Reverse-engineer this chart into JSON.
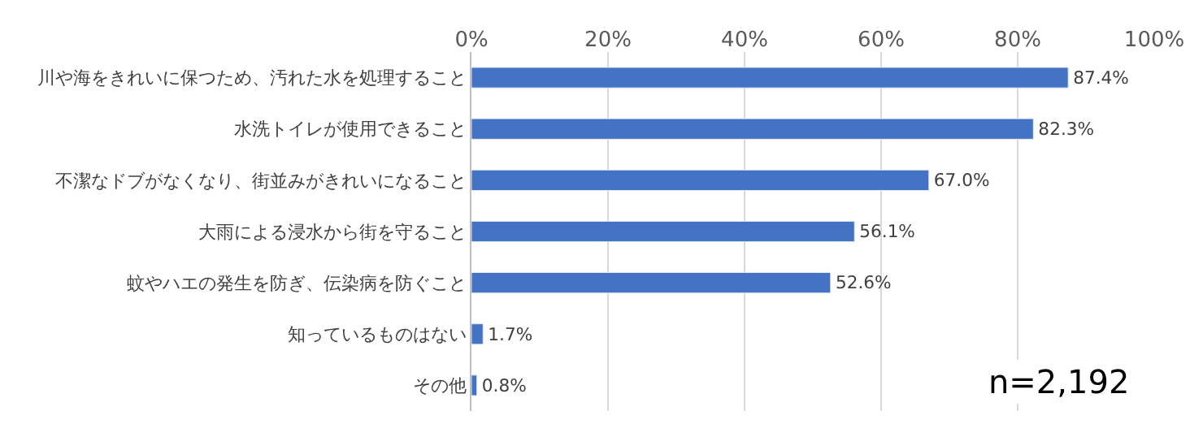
{
  "chart_data": {
    "type": "bar",
    "orientation": "horizontal",
    "categories": [
      "川や海をきれいに保つため、汚れた水を処理すること",
      "水洗トイレが使用できること",
      "不潔なドブがなくなり、街並みがきれいになること",
      "大雨による浸水から街を守ること",
      "蚊やハエの発生を防ぎ、伝染病を防ぐこと",
      "知っているものはない",
      "その他"
    ],
    "values": [
      87.4,
      82.3,
      67.0,
      56.1,
      52.6,
      1.7,
      0.8
    ],
    "value_labels": [
      "87.4%",
      "82.3%",
      "67.0%",
      "56.1%",
      "52.6%",
      "1.7%",
      "0.8%"
    ],
    "color": "#4472c4",
    "xlim": [
      0,
      100
    ],
    "xticks": [
      {
        "value": 0,
        "label": "0%"
      },
      {
        "value": 20,
        "label": "20%"
      },
      {
        "value": 40,
        "label": "40%"
      },
      {
        "value": 60,
        "label": "60%"
      },
      {
        "value": 80,
        "label": "80%"
      },
      {
        "value": 100,
        "label": "100%"
      }
    ],
    "grid": "x",
    "annotations": [
      "n=2,192"
    ]
  }
}
